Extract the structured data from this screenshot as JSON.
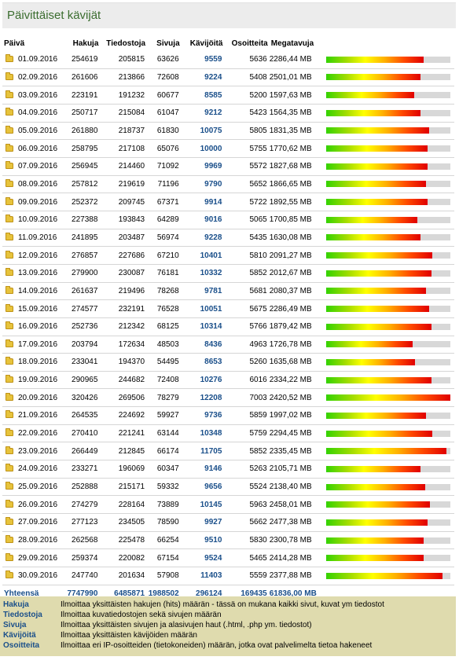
{
  "title": "Päivittäiset kävijät",
  "columns": [
    "Päivä",
    "Hakuja",
    "Tiedostoja",
    "Sivuja",
    "Kävijöitä",
    "Osoitteita",
    "Megatavuja"
  ],
  "rows": [
    {
      "date": "01.09.2016",
      "hits": "254619",
      "files": "205815",
      "pages": "63626",
      "visitors": "9559",
      "addresses": "5636",
      "mb": "2286,44 MB",
      "bar": 0.79
    },
    {
      "date": "02.09.2016",
      "hits": "261606",
      "files": "213866",
      "pages": "72608",
      "visitors": "9224",
      "addresses": "5408",
      "mb": "2501,01 MB",
      "bar": 0.76
    },
    {
      "date": "03.09.2016",
      "hits": "223191",
      "files": "191232",
      "pages": "60677",
      "visitors": "8585",
      "addresses": "5200",
      "mb": "1597,63 MB",
      "bar": 0.71
    },
    {
      "date": "04.09.2016",
      "hits": "250717",
      "files": "215084",
      "pages": "61047",
      "visitors": "9212",
      "addresses": "5423",
      "mb": "1564,35 MB",
      "bar": 0.76
    },
    {
      "date": "05.09.2016",
      "hits": "261880",
      "files": "218737",
      "pages": "61830",
      "visitors": "10075",
      "addresses": "5805",
      "mb": "1831,35 MB",
      "bar": 0.83
    },
    {
      "date": "06.09.2016",
      "hits": "258795",
      "files": "217108",
      "pages": "65076",
      "visitors": "10000",
      "addresses": "5755",
      "mb": "1770,62 MB",
      "bar": 0.82
    },
    {
      "date": "07.09.2016",
      "hits": "256945",
      "files": "214460",
      "pages": "71092",
      "visitors": "9969",
      "addresses": "5572",
      "mb": "1827,68 MB",
      "bar": 0.82
    },
    {
      "date": "08.09.2016",
      "hits": "257812",
      "files": "219619",
      "pages": "71196",
      "visitors": "9790",
      "addresses": "5652",
      "mb": "1866,65 MB",
      "bar": 0.81
    },
    {
      "date": "09.09.2016",
      "hits": "252372",
      "files": "209745",
      "pages": "67371",
      "visitors": "9914",
      "addresses": "5722",
      "mb": "1892,55 MB",
      "bar": 0.82
    },
    {
      "date": "10.09.2016",
      "hits": "227388",
      "files": "193843",
      "pages": "64289",
      "visitors": "9016",
      "addresses": "5065",
      "mb": "1700,85 MB",
      "bar": 0.74
    },
    {
      "date": "11.09.2016",
      "hits": "241895",
      "files": "203487",
      "pages": "56974",
      "visitors": "9228",
      "addresses": "5435",
      "mb": "1630,08 MB",
      "bar": 0.76
    },
    {
      "date": "12.09.2016",
      "hits": "276857",
      "files": "227686",
      "pages": "67210",
      "visitors": "10401",
      "addresses": "5810",
      "mb": "2091,27 MB",
      "bar": 0.86
    },
    {
      "date": "13.09.2016",
      "hits": "279900",
      "files": "230087",
      "pages": "76181",
      "visitors": "10332",
      "addresses": "5852",
      "mb": "2012,67 MB",
      "bar": 0.85
    },
    {
      "date": "14.09.2016",
      "hits": "261637",
      "files": "219496",
      "pages": "78268",
      "visitors": "9781",
      "addresses": "5681",
      "mb": "2080,37 MB",
      "bar": 0.81
    },
    {
      "date": "15.09.2016",
      "hits": "274577",
      "files": "232191",
      "pages": "76528",
      "visitors": "10051",
      "addresses": "5675",
      "mb": "2286,49 MB",
      "bar": 0.83
    },
    {
      "date": "16.09.2016",
      "hits": "252736",
      "files": "212342",
      "pages": "68125",
      "visitors": "10314",
      "addresses": "5766",
      "mb": "1879,42 MB",
      "bar": 0.85
    },
    {
      "date": "17.09.2016",
      "hits": "203794",
      "files": "172634",
      "pages": "48503",
      "visitors": "8436",
      "addresses": "4963",
      "mb": "1726,78 MB",
      "bar": 0.7
    },
    {
      "date": "18.09.2016",
      "hits": "233041",
      "files": "194370",
      "pages": "54495",
      "visitors": "8653",
      "addresses": "5260",
      "mb": "1635,68 MB",
      "bar": 0.72
    },
    {
      "date": "19.09.2016",
      "hits": "290965",
      "files": "244682",
      "pages": "72408",
      "visitors": "10276",
      "addresses": "6016",
      "mb": "2334,22 MB",
      "bar": 0.85
    },
    {
      "date": "20.09.2016",
      "hits": "320426",
      "files": "269506",
      "pages": "78279",
      "visitors": "12208",
      "addresses": "7003",
      "mb": "2420,52 MB",
      "bar": 1.0
    },
    {
      "date": "21.09.2016",
      "hits": "264535",
      "files": "224692",
      "pages": "59927",
      "visitors": "9736",
      "addresses": "5859",
      "mb": "1997,02 MB",
      "bar": 0.81
    },
    {
      "date": "22.09.2016",
      "hits": "270410",
      "files": "221241",
      "pages": "63144",
      "visitors": "10348",
      "addresses": "5759",
      "mb": "2294,45 MB",
      "bar": 0.86
    },
    {
      "date": "23.09.2016",
      "hits": "266449",
      "files": "212845",
      "pages": "66174",
      "visitors": "11705",
      "addresses": "5852",
      "mb": "2335,45 MB",
      "bar": 0.97
    },
    {
      "date": "24.09.2016",
      "hits": "233271",
      "files": "196069",
      "pages": "60347",
      "visitors": "9146",
      "addresses": "5263",
      "mb": "2105,71 MB",
      "bar": 0.76
    },
    {
      "date": "25.09.2016",
      "hits": "252888",
      "files": "215171",
      "pages": "59332",
      "visitors": "9656",
      "addresses": "5524",
      "mb": "2138,40 MB",
      "bar": 0.8
    },
    {
      "date": "26.09.2016",
      "hits": "274279",
      "files": "228164",
      "pages": "73889",
      "visitors": "10145",
      "addresses": "5963",
      "mb": "2458,01 MB",
      "bar": 0.84
    },
    {
      "date": "27.09.2016",
      "hits": "277123",
      "files": "234505",
      "pages": "78590",
      "visitors": "9927",
      "addresses": "5662",
      "mb": "2477,38 MB",
      "bar": 0.82
    },
    {
      "date": "28.09.2016",
      "hits": "262568",
      "files": "225478",
      "pages": "66254",
      "visitors": "9510",
      "addresses": "5830",
      "mb": "2300,78 MB",
      "bar": 0.79
    },
    {
      "date": "29.09.2016",
      "hits": "259374",
      "files": "220082",
      "pages": "67154",
      "visitors": "9524",
      "addresses": "5465",
      "mb": "2414,28 MB",
      "bar": 0.79
    },
    {
      "date": "30.09.2016",
      "hits": "247740",
      "files": "201634",
      "pages": "57908",
      "visitors": "11403",
      "addresses": "5559",
      "mb": "2377,88 MB",
      "bar": 0.94
    }
  ],
  "totals": {
    "label": "Yhteensä",
    "hits": "7747990",
    "files": "6485871",
    "pages": "1988502",
    "visitors": "296124",
    "addresses": "169435",
    "mb_value": "61836,00",
    "mb_unit": "MB"
  },
  "legend": [
    {
      "term": "Hakuja",
      "desc": "Ilmoittaa yksittäisten hakujen (hits) määrän - tässä on mukana kaikki sivut, kuvat ym tiedostot"
    },
    {
      "term": "Tiedostoja",
      "desc": "Ilmoittaa kuvatiedostojen sekä sivujen määrän"
    },
    {
      "term": "Sivuja",
      "desc": "Ilmoittaa yksittäisten sivujen ja alasivujen haut (.html, .php ym. tiedostot)"
    },
    {
      "term": "Kävijöitä",
      "desc": "Ilmoittaa yksittäisten kävijöiden määrän"
    },
    {
      "term": "Osoitteita",
      "desc": "Ilmoittaa eri IP-osoitteiden (tietokoneiden) määrän, jotka ovat palvelimelta tietoa hakeneet"
    }
  ],
  "colors": {
    "title": "#3b6d2f",
    "accent": "#1a4f8a",
    "legend_bg": "#dfdbae"
  },
  "icons": {
    "row": "folder-icon"
  }
}
